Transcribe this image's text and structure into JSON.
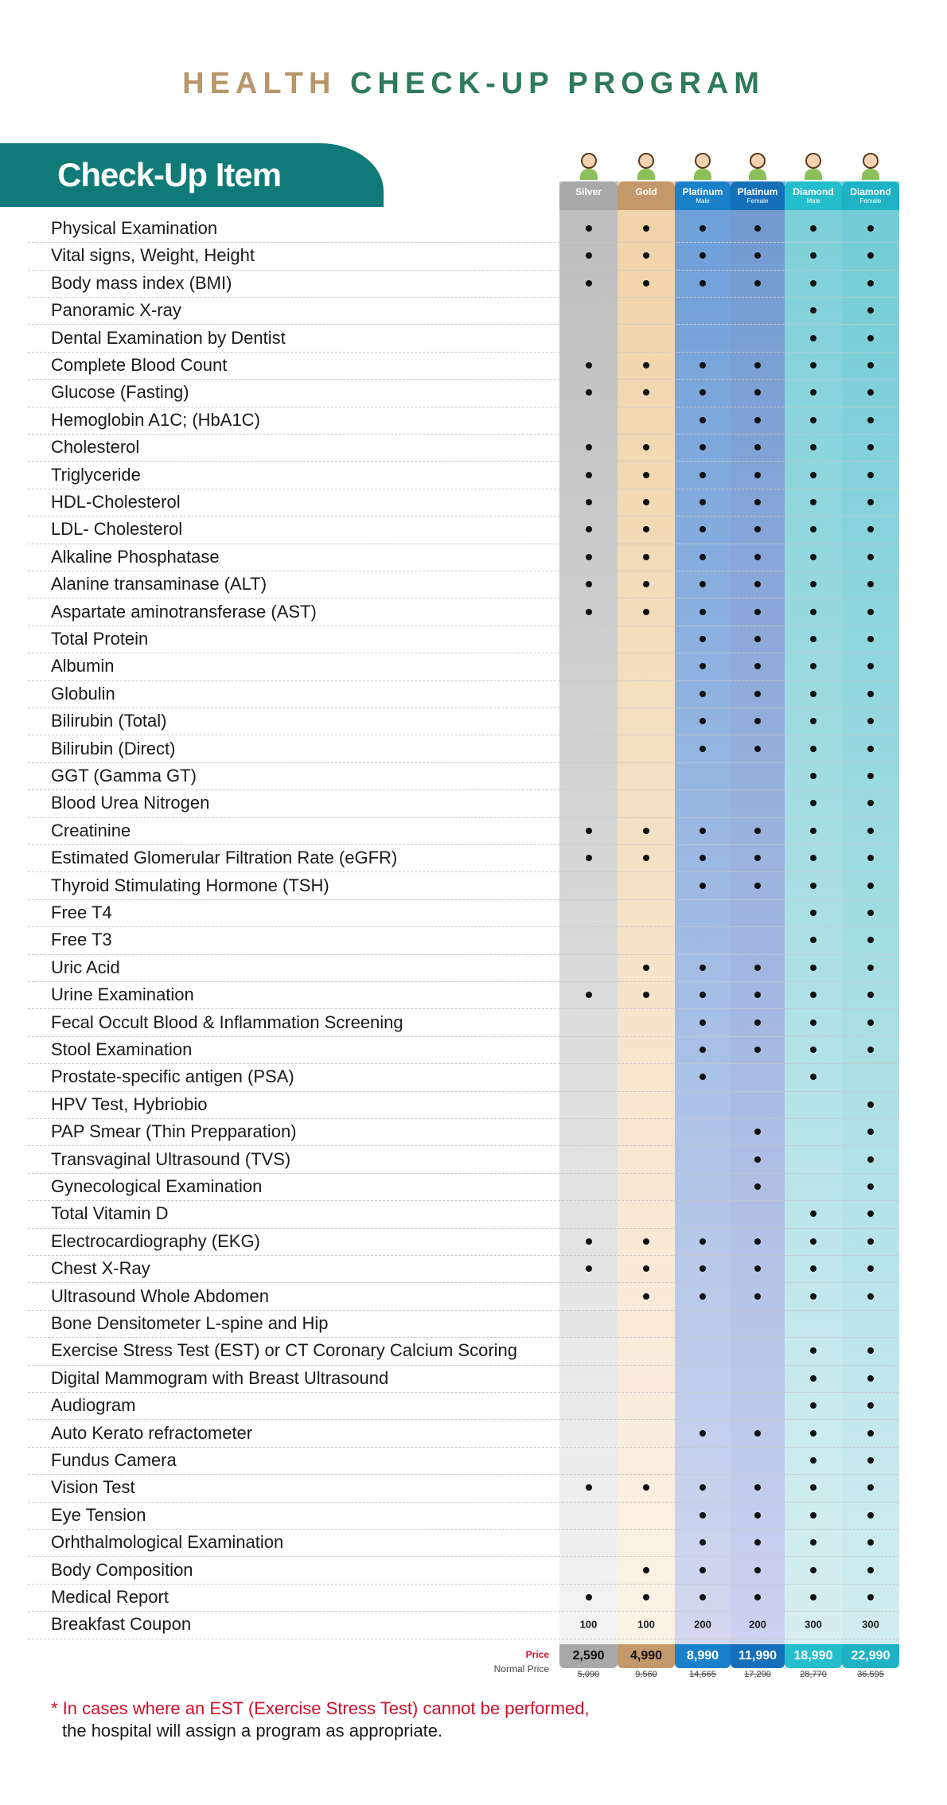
{
  "header": {
    "title_a": "HEALTH",
    "title_b": "CHECK-UP PROGRAM",
    "item_heading": "Check-Up Item"
  },
  "columns": [
    {
      "name": "Silver"
    },
    {
      "name": "Gold"
    },
    {
      "name": "Platinum",
      "sub": "Male"
    },
    {
      "name": "Platinum",
      "sub": "Female"
    },
    {
      "name": "Diamond",
      "sub": "Male"
    },
    {
      "name": "Diamond",
      "sub": "Female"
    }
  ],
  "rows": [
    {
      "item": "Physical Examination",
      "marks": [
        1,
        1,
        1,
        1,
        1,
        1
      ]
    },
    {
      "item": "Vital signs, Weight, Height",
      "marks": [
        1,
        1,
        1,
        1,
        1,
        1
      ]
    },
    {
      "item": "Body mass index (BMI)",
      "marks": [
        1,
        1,
        1,
        1,
        1,
        1
      ]
    },
    {
      "item": "Panoramic X-ray",
      "marks": [
        0,
        0,
        0,
        0,
        1,
        1
      ]
    },
    {
      "item": "Dental Examination by Dentist",
      "marks": [
        0,
        0,
        0,
        0,
        1,
        1
      ]
    },
    {
      "item": "Complete Blood Count",
      "marks": [
        1,
        1,
        1,
        1,
        1,
        1
      ]
    },
    {
      "item": "Glucose (Fasting)",
      "marks": [
        1,
        1,
        1,
        1,
        1,
        1
      ]
    },
    {
      "item": "Hemoglobin A1C; (HbA1C)",
      "marks": [
        0,
        0,
        1,
        1,
        1,
        1
      ]
    },
    {
      "item": "Cholesterol",
      "marks": [
        1,
        1,
        1,
        1,
        1,
        1
      ]
    },
    {
      "item": "Triglyceride",
      "marks": [
        1,
        1,
        1,
        1,
        1,
        1
      ]
    },
    {
      "item": "HDL-Cholesterol",
      "marks": [
        1,
        1,
        1,
        1,
        1,
        1
      ]
    },
    {
      "item": "LDL- Cholesterol",
      "marks": [
        1,
        1,
        1,
        1,
        1,
        1
      ]
    },
    {
      "item": "Alkaline Phosphatase",
      "marks": [
        1,
        1,
        1,
        1,
        1,
        1
      ]
    },
    {
      "item": "Alanine transaminase (ALT)",
      "marks": [
        1,
        1,
        1,
        1,
        1,
        1
      ]
    },
    {
      "item": "Aspartate aminotransferase (AST)",
      "marks": [
        1,
        1,
        1,
        1,
        1,
        1
      ]
    },
    {
      "item": "Total Protein",
      "marks": [
        0,
        0,
        1,
        1,
        1,
        1
      ]
    },
    {
      "item": "Albumin",
      "marks": [
        0,
        0,
        1,
        1,
        1,
        1
      ]
    },
    {
      "item": "Globulin",
      "marks": [
        0,
        0,
        1,
        1,
        1,
        1
      ]
    },
    {
      "item": "Bilirubin (Total)",
      "marks": [
        0,
        0,
        1,
        1,
        1,
        1
      ]
    },
    {
      "item": "Bilirubin (Direct)",
      "marks": [
        0,
        0,
        1,
        1,
        1,
        1
      ]
    },
    {
      "item": "GGT (Gamma GT)",
      "marks": [
        0,
        0,
        0,
        0,
        1,
        1
      ]
    },
    {
      "item": "Blood Urea Nitrogen",
      "marks": [
        0,
        0,
        0,
        0,
        1,
        1
      ]
    },
    {
      "item": "Creatinine",
      "marks": [
        1,
        1,
        1,
        1,
        1,
        1
      ]
    },
    {
      "item": "Estimated Glomerular Filtration Rate (eGFR)",
      "marks": [
        1,
        1,
        1,
        1,
        1,
        1
      ]
    },
    {
      "item": "Thyroid Stimulating Hormone (TSH)",
      "marks": [
        0,
        0,
        1,
        1,
        1,
        1
      ]
    },
    {
      "item": "Free T4",
      "marks": [
        0,
        0,
        0,
        0,
        1,
        1
      ]
    },
    {
      "item": "Free T3",
      "marks": [
        0,
        0,
        0,
        0,
        1,
        1
      ]
    },
    {
      "item": "Uric Acid",
      "marks": [
        0,
        1,
        1,
        1,
        1,
        1
      ]
    },
    {
      "item": "Urine Examination",
      "marks": [
        1,
        1,
        1,
        1,
        1,
        1
      ]
    },
    {
      "item": "Fecal Occult Blood & Inflammation Screening",
      "marks": [
        0,
        0,
        1,
        1,
        1,
        1
      ]
    },
    {
      "item": "Stool Examination",
      "marks": [
        0,
        0,
        1,
        1,
        1,
        1
      ]
    },
    {
      "item": "Prostate-specific antigen (PSA)",
      "marks": [
        0,
        0,
        1,
        0,
        1,
        0
      ]
    },
    {
      "item": "HPV  Test, Hybriobio",
      "marks": [
        0,
        0,
        0,
        0,
        0,
        1
      ]
    },
    {
      "item": "PAP Smear (Thin Prepparation)",
      "marks": [
        0,
        0,
        0,
        1,
        0,
        1
      ]
    },
    {
      "item": "Transvaginal Ultrasound (TVS)",
      "marks": [
        0,
        0,
        0,
        1,
        0,
        1
      ]
    },
    {
      "item": "Gynecological Examination",
      "marks": [
        0,
        0,
        0,
        1,
        0,
        1
      ]
    },
    {
      "item": "Total Vitamin D",
      "marks": [
        0,
        0,
        0,
        0,
        1,
        1
      ]
    },
    {
      "item": "Electrocardiography (EKG)",
      "marks": [
        1,
        1,
        1,
        1,
        1,
        1
      ]
    },
    {
      "item": "Chest X-Ray",
      "marks": [
        1,
        1,
        1,
        1,
        1,
        1
      ]
    },
    {
      "item": "Ultrasound Whole Abdomen",
      "marks": [
        0,
        1,
        1,
        1,
        1,
        1
      ]
    },
    {
      "item": "Bone Densitometer L-spine and Hip",
      "marks": [
        0,
        0,
        0,
        0,
        0,
        0
      ]
    },
    {
      "item": "Exercise Stress Test (EST) or CT Coronary Calcium Scoring",
      "marks": [
        0,
        0,
        0,
        0,
        1,
        1
      ]
    },
    {
      "item": "Digital Mammogram with Breast Ultrasound",
      "marks": [
        0,
        0,
        0,
        0,
        1,
        1
      ]
    },
    {
      "item": "Audiogram",
      "marks": [
        0,
        0,
        0,
        0,
        1,
        1
      ]
    },
    {
      "item": "Auto Kerato refractometer",
      "marks": [
        0,
        0,
        1,
        1,
        1,
        1
      ]
    },
    {
      "item": "Fundus Camera",
      "marks": [
        0,
        0,
        0,
        0,
        1,
        1
      ]
    },
    {
      "item": "Vision Test",
      "marks": [
        1,
        1,
        1,
        1,
        1,
        1
      ]
    },
    {
      "item": "Eye Tension",
      "marks": [
        0,
        0,
        1,
        1,
        1,
        1
      ]
    },
    {
      "item": "Orhthalmological Examination",
      "marks": [
        0,
        0,
        1,
        1,
        1,
        1
      ]
    },
    {
      "item": "Body Composition",
      "marks": [
        0,
        1,
        1,
        1,
        1,
        1
      ]
    },
    {
      "item": "Medical Report",
      "marks": [
        1,
        1,
        1,
        1,
        1,
        1
      ]
    },
    {
      "item": "Breakfast Coupon",
      "values": [
        100,
        100,
        200,
        200,
        300,
        300
      ]
    }
  ],
  "price": {
    "label": "Price",
    "normal_label": "Normal Price",
    "prices": [
      "2,590",
      "4,990",
      "8,990",
      "11,990",
      "18,990",
      "22,990"
    ],
    "normal_prices": [
      "5,090",
      "9,560",
      "14,665",
      "17,290",
      "28,770",
      "36,595"
    ]
  },
  "footnote": {
    "line1": "* In cases where an EST (Exercise Stress Test) cannot be performed,",
    "line2": "the hospital will assign a program as appropriate."
  }
}
